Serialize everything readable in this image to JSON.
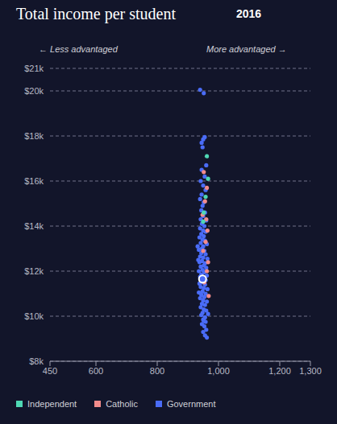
{
  "chart_data": {
    "type": "scatter",
    "title": "Total income per student",
    "subtitle": "2016",
    "annotations": [
      "← Less advantaged",
      "More advantaged →"
    ],
    "xlim": [
      450,
      1300
    ],
    "xticks": [
      450,
      600,
      800,
      {
        "value": 1000,
        "label": "1,000"
      },
      {
        "value": 1200,
        "label": "1,200"
      },
      {
        "value": 1300,
        "label": "1,300"
      }
    ],
    "ylim": [
      8000,
      21000
    ],
    "yticks": [
      {
        "value": 8000,
        "label": "$8k"
      },
      {
        "value": 10000,
        "label": "$10k"
      },
      {
        "value": 12000,
        "label": "$12k"
      },
      {
        "value": 14000,
        "label": "$14k"
      },
      {
        "value": 16000,
        "label": "$16k"
      },
      {
        "value": 18000,
        "label": "$18k"
      },
      {
        "value": 20000,
        "label": "$20k"
      },
      {
        "value": 21000,
        "label": "$21k"
      }
    ],
    "grid": true,
    "legend": "bottom",
    "series": [
      {
        "name": "Independent",
        "color": "#4fd8b4",
        "x": [
          962,
          966,
          958,
          952,
          950
        ],
        "y": [
          17100,
          16100,
          15300,
          14600,
          14200
        ]
      },
      {
        "name": "Catholic",
        "color": "#f28b8b",
        "x": [
          952,
          962,
          956,
          948,
          960,
          964,
          958,
          950,
          966,
          962,
          968,
          954
        ],
        "y": [
          16400,
          15700,
          15100,
          14500,
          14300,
          13800,
          13300,
          12900,
          12400,
          12000,
          10900,
          11500
        ]
      },
      {
        "name": "Government",
        "color": "#4a6cf7",
        "x": [
          940,
          952,
          945,
          950,
          955,
          948,
          960,
          945,
          955,
          942,
          950,
          958,
          945,
          940,
          952,
          948,
          944,
          956,
          950,
          942,
          960,
          946,
          954,
          940,
          950,
          958,
          944,
          952,
          938,
          948,
          956,
          942,
          962,
          950,
          946,
          936,
          954,
          944,
          958,
          940,
          950,
          964,
          946,
          938,
          956,
          952,
          942,
          960,
          948,
          936,
          954,
          944,
          962,
          940,
          950,
          958,
          946,
          938,
          956,
          942,
          952,
          964,
          948,
          936,
          958,
          944,
          954,
          940,
          950,
          962,
          946,
          956,
          942,
          952,
          960,
          948,
          944,
          956,
          950,
          958,
          946,
          954,
          960,
          950,
          956,
          962,
          952,
          966,
          934,
          932
        ],
        "y": [
          20050,
          19900,
          17700,
          17850,
          17950,
          17500,
          16700,
          16500,
          16200,
          16000,
          15800,
          15600,
          15400,
          15200,
          15050,
          14900,
          14700,
          14600,
          14450,
          14300,
          14250,
          14100,
          14000,
          13900,
          13800,
          13750,
          13650,
          13550,
          13500,
          13400,
          13350,
          13250,
          13200,
          13100,
          13000,
          12950,
          12900,
          12800,
          12750,
          12650,
          12600,
          12550,
          12450,
          12400,
          12350,
          12250,
          12200,
          12150,
          12050,
          12000,
          11950,
          11850,
          11800,
          11750,
          11700,
          11600,
          11500,
          11450,
          11400,
          11300,
          11250,
          11200,
          11100,
          11050,
          11000,
          10950,
          10850,
          10800,
          10700,
          10650,
          10550,
          10500,
          10400,
          10300,
          10250,
          10150,
          10050,
          9950,
          9850,
          9750,
          9650,
          9550,
          9400,
          9300,
          9150,
          9050,
          9800,
          10100,
          12500,
          13100
        ]
      }
    ],
    "highlight": {
      "x": 948,
      "y": 11650,
      "marker": "circle-open"
    }
  }
}
